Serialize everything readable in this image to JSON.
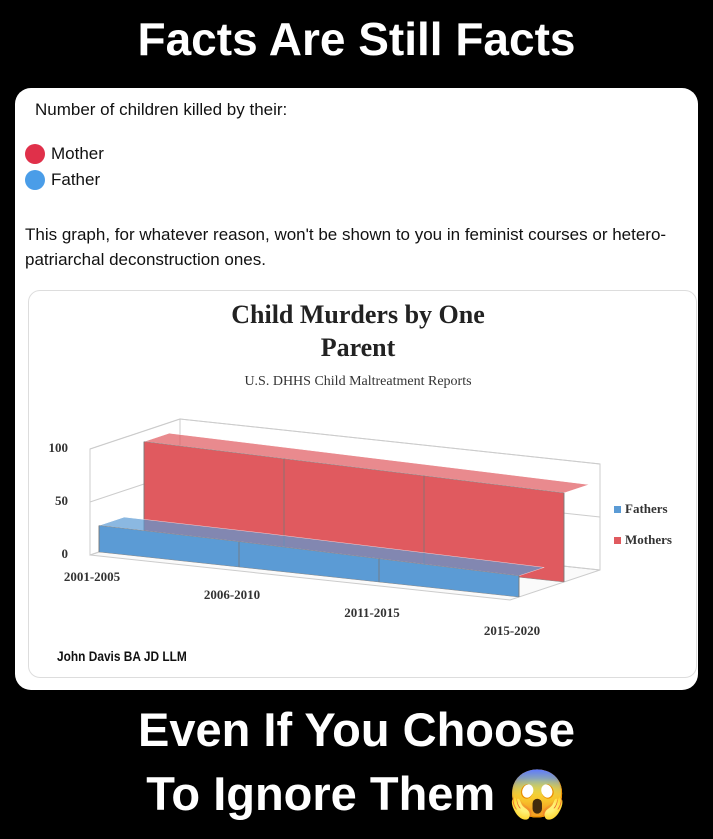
{
  "header": {
    "title": "Facts Are Still Facts"
  },
  "post": {
    "intro": "Number of children killed by their:",
    "legend": [
      {
        "label": "Mother",
        "color": "#e0304a"
      },
      {
        "label": "Father",
        "color": "#4a9de8"
      }
    ],
    "text": "This graph, for whatever reason, won't be shown to you in feminist courses or hetero-patriarchal deconstruction ones."
  },
  "chart_data": {
    "type": "area3d",
    "title": "Child Murders by One Parent",
    "subtitle": "U.S. DHHS Child Maltreatment Reports",
    "annotation": "John Davis BA JD LLM",
    "categories": [
      "2001-2005",
      "2006-2010",
      "2011-2015",
      "2015-2020"
    ],
    "series": [
      {
        "name": "Fathers",
        "color": "#5b9bd5",
        "values": [
          25,
          24,
          22,
          20
        ]
      },
      {
        "name": "Mothers",
        "color": "#e05a5f",
        "values": [
          90,
          88,
          86,
          84
        ]
      }
    ],
    "ylim": [
      0,
      100
    ],
    "yticks": [
      0,
      50,
      100
    ],
    "grid": true,
    "legend": "right"
  },
  "footer": {
    "lines": [
      "Even If You Choose",
      "To Ignore Them 😱"
    ]
  }
}
